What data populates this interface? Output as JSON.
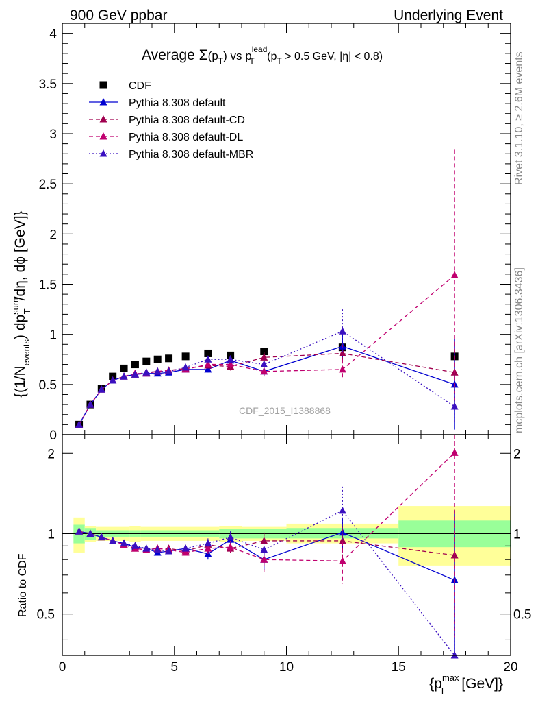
{
  "header": {
    "left": "900 GeV ppbar",
    "right": "Underlying Event"
  },
  "side_labels": {
    "rivet": "Rivet 3.1.10, ≥ 2.6M events",
    "mcplots": "mcplots.cern.ch [arXiv:1306.3436]"
  },
  "chart_data": [
    {
      "panel": "main",
      "type": "scatter",
      "title_parts": {
        "prefix": "Average ",
        "sigma": "Σ",
        "pt_open": "(p",
        "pt_sub": "T",
        "pt_close": ")",
        "vs": " vs p",
        "lead_sup": "lead",
        "lead_sub": "T",
        "cut_open": " (p",
        "cut_sub": "T",
        "cut_rest": " > 0.5 GeV, |η| < 0.8)"
      },
      "ylabel_parts": {
        "a": "{(1/N",
        "a_sub": "events",
        "b": ") dp",
        "b_sup": "sum",
        "b_sub": "T",
        "c": "/dη, dϕ [GeV]}"
      },
      "watermark": "CDF_2015_I1388868",
      "xlim": [
        0,
        20
      ],
      "ylim": [
        0,
        4.1
      ],
      "yticks": [
        "0",
        "0.5",
        "1",
        "1.5",
        "2",
        "2.5",
        "3",
        "3.5",
        "4"
      ],
      "legend_position": "top-left",
      "series": [
        {
          "name": "CDF",
          "style": "data",
          "color": "#000000",
          "x": [
            0.75,
            1.25,
            1.75,
            2.25,
            2.75,
            3.25,
            3.75,
            4.25,
            4.75,
            5.5,
            6.5,
            7.5,
            9.0,
            12.5,
            17.5
          ],
          "y": [
            0.1,
            0.3,
            0.46,
            0.58,
            0.66,
            0.7,
            0.73,
            0.75,
            0.76,
            0.78,
            0.81,
            0.79,
            0.83,
            0.87,
            0.78
          ]
        },
        {
          "name": "Pythia 8.308 default",
          "style": "solid",
          "color": "#0000d0",
          "x": [
            0.75,
            1.25,
            1.75,
            2.25,
            2.75,
            3.25,
            3.75,
            4.25,
            4.75,
            5.5,
            6.5,
            7.5,
            9.0,
            12.5,
            17.5
          ],
          "y": [
            0.1,
            0.3,
            0.45,
            0.54,
            0.58,
            0.6,
            0.61,
            0.61,
            0.62,
            0.65,
            0.65,
            0.74,
            0.63,
            0.88,
            0.5
          ],
          "err": [
            0.01,
            0.01,
            0.01,
            0.01,
            0.01,
            0.01,
            0.02,
            0.02,
            0.02,
            0.02,
            0.03,
            0.04,
            0.05,
            0.12,
            0.45
          ]
        },
        {
          "name": "Pythia 8.308 default-CD",
          "style": "dashed",
          "color": "#a0004f",
          "x": [
            0.75,
            1.25,
            1.75,
            2.25,
            2.75,
            3.25,
            3.75,
            4.25,
            4.75,
            5.5,
            6.5,
            7.5,
            9.0,
            12.5,
            17.5
          ],
          "y": [
            0.1,
            0.3,
            0.45,
            0.54,
            0.58,
            0.6,
            0.62,
            0.63,
            0.64,
            0.66,
            0.69,
            0.68,
            0.77,
            0.81,
            0.62
          ],
          "err": [
            0.01,
            0.01,
            0.01,
            0.01,
            0.01,
            0.01,
            0.02,
            0.02,
            0.02,
            0.02,
            0.03,
            0.04,
            0.05,
            0.1,
            0.3
          ]
        },
        {
          "name": "Pythia 8.308 default-DL",
          "style": "dashed",
          "color": "#c0006f",
          "x": [
            0.75,
            1.25,
            1.75,
            2.25,
            2.75,
            3.25,
            3.75,
            4.25,
            4.75,
            5.5,
            6.5,
            7.5,
            9.0,
            12.5,
            17.5
          ],
          "y": [
            0.1,
            0.3,
            0.45,
            0.54,
            0.58,
            0.61,
            0.61,
            0.63,
            0.64,
            0.65,
            0.7,
            0.7,
            0.63,
            0.65,
            1.59
          ],
          "err": [
            0.01,
            0.01,
            0.01,
            0.01,
            0.01,
            0.01,
            0.02,
            0.02,
            0.02,
            0.02,
            0.03,
            0.04,
            0.06,
            0.1,
            1.25
          ]
        },
        {
          "name": "Pythia 8.308 default-MBR",
          "style": "dotted",
          "color": "#3a10c0",
          "x": [
            0.75,
            1.25,
            1.75,
            2.25,
            2.75,
            3.25,
            3.75,
            4.25,
            4.75,
            5.5,
            6.5,
            7.5,
            9.0,
            12.5,
            17.5
          ],
          "y": [
            0.1,
            0.3,
            0.45,
            0.54,
            0.58,
            0.6,
            0.62,
            0.63,
            0.63,
            0.67,
            0.75,
            0.75,
            0.7,
            1.03,
            0.28
          ],
          "err": [
            0.01,
            0.01,
            0.01,
            0.01,
            0.01,
            0.01,
            0.02,
            0.02,
            0.02,
            0.02,
            0.03,
            0.04,
            0.06,
            0.22,
            0.17
          ]
        }
      ]
    },
    {
      "panel": "ratio",
      "type": "scatter",
      "ylabel": "Ratio to CDF",
      "xlabel_parts": {
        "a": "{p",
        "sup": "max",
        "sub": "T",
        "b": " [GeV]}"
      },
      "xlim": [
        0,
        20
      ],
      "ylim": [
        0.35,
        2.35
      ],
      "xticks": [
        "0",
        "5",
        "10",
        "15",
        "20"
      ],
      "yticks": [
        "0.5",
        "1",
        "2"
      ],
      "bands": [
        {
          "x0": 0.5,
          "x1": 1.0,
          "inner": [
            0.92,
            1.08
          ],
          "outer": [
            0.85,
            1.15
          ]
        },
        {
          "x0": 1.0,
          "x1": 1.5,
          "inner": [
            0.95,
            1.05
          ],
          "outer": [
            0.93,
            1.07
          ]
        },
        {
          "x0": 1.5,
          "x1": 3.0,
          "inner": [
            0.97,
            1.03
          ],
          "outer": [
            0.94,
            1.06
          ]
        },
        {
          "x0": 3.0,
          "x1": 3.5,
          "inner": [
            0.97,
            1.03
          ],
          "outer": [
            0.93,
            1.07
          ]
        },
        {
          "x0": 3.5,
          "x1": 7.0,
          "inner": [
            0.97,
            1.03
          ],
          "outer": [
            0.94,
            1.06
          ]
        },
        {
          "x0": 7.0,
          "x1": 8.0,
          "inner": [
            0.96,
            1.04
          ],
          "outer": [
            0.93,
            1.07
          ]
        },
        {
          "x0": 8.0,
          "x1": 10.0,
          "inner": [
            0.96,
            1.04
          ],
          "outer": [
            0.94,
            1.06
          ]
        },
        {
          "x0": 10.0,
          "x1": 15.0,
          "inner": [
            0.96,
            1.05
          ],
          "outer": [
            0.92,
            1.09
          ]
        },
        {
          "x0": 15.0,
          "x1": 20.0,
          "inner": [
            0.89,
            1.12
          ],
          "outer": [
            0.76,
            1.27
          ]
        }
      ],
      "series": [
        {
          "name": "Pythia 8.308 default",
          "style": "solid",
          "color": "#0000d0",
          "x": [
            0.75,
            1.25,
            1.75,
            2.25,
            2.75,
            3.25,
            3.75,
            4.25,
            4.75,
            5.5,
            6.5,
            7.5,
            9.0,
            12.5,
            17.5
          ],
          "y": [
            1.02,
            1.0,
            0.97,
            0.94,
            0.92,
            0.89,
            0.88,
            0.85,
            0.86,
            0.88,
            0.84,
            0.95,
            0.8,
            1.01,
            0.67
          ],
          "err": [
            0.01,
            0.01,
            0.01,
            0.01,
            0.01,
            0.01,
            0.02,
            0.02,
            0.02,
            0.02,
            0.04,
            0.05,
            0.07,
            0.14,
            0.55
          ]
        },
        {
          "name": "Pythia 8.308 default-CD",
          "style": "dashed",
          "color": "#a0004f",
          "x": [
            0.75,
            1.25,
            1.75,
            2.25,
            2.75,
            3.25,
            3.75,
            4.25,
            4.75,
            5.5,
            6.5,
            7.5,
            9.0,
            12.5,
            17.5
          ],
          "y": [
            1.02,
            1.0,
            0.97,
            0.94,
            0.91,
            0.88,
            0.87,
            0.88,
            0.88,
            0.86,
            0.91,
            0.88,
            0.94,
            0.94,
            0.83
          ],
          "err": [
            0.01,
            0.01,
            0.01,
            0.01,
            0.01,
            0.01,
            0.02,
            0.02,
            0.02,
            0.02,
            0.04,
            0.05,
            0.07,
            0.12,
            0.4
          ]
        },
        {
          "name": "Pythia 8.308 default-DL",
          "style": "dashed",
          "color": "#c0006f",
          "x": [
            0.75,
            1.25,
            1.75,
            2.25,
            2.75,
            3.25,
            3.75,
            4.25,
            4.75,
            5.5,
            6.5,
            7.5,
            9.0,
            12.5,
            17.5
          ],
          "y": [
            1.02,
            1.0,
            0.97,
            0.94,
            0.91,
            0.88,
            0.87,
            0.88,
            0.87,
            0.85,
            0.88,
            0.89,
            0.8,
            0.79,
            2.01
          ],
          "err": [
            0.01,
            0.01,
            0.01,
            0.01,
            0.01,
            0.01,
            0.02,
            0.02,
            0.02,
            0.02,
            0.04,
            0.05,
            0.08,
            0.14,
            1.6
          ]
        },
        {
          "name": "Pythia 8.308 default-MBR",
          "style": "dotted",
          "color": "#3a10c0",
          "x": [
            0.75,
            1.25,
            1.75,
            2.25,
            2.75,
            3.25,
            3.75,
            4.25,
            4.75,
            5.5,
            6.5,
            7.5,
            9.0,
            12.5,
            17.5
          ],
          "y": [
            1.02,
            1.0,
            0.97,
            0.94,
            0.92,
            0.9,
            0.88,
            0.87,
            0.86,
            0.88,
            0.92,
            0.97,
            0.87,
            1.22,
            0.35
          ],
          "err": [
            0.01,
            0.01,
            0.01,
            0.01,
            0.01,
            0.01,
            0.02,
            0.02,
            0.02,
            0.02,
            0.04,
            0.05,
            0.08,
            0.28,
            0.2
          ]
        }
      ]
    }
  ]
}
